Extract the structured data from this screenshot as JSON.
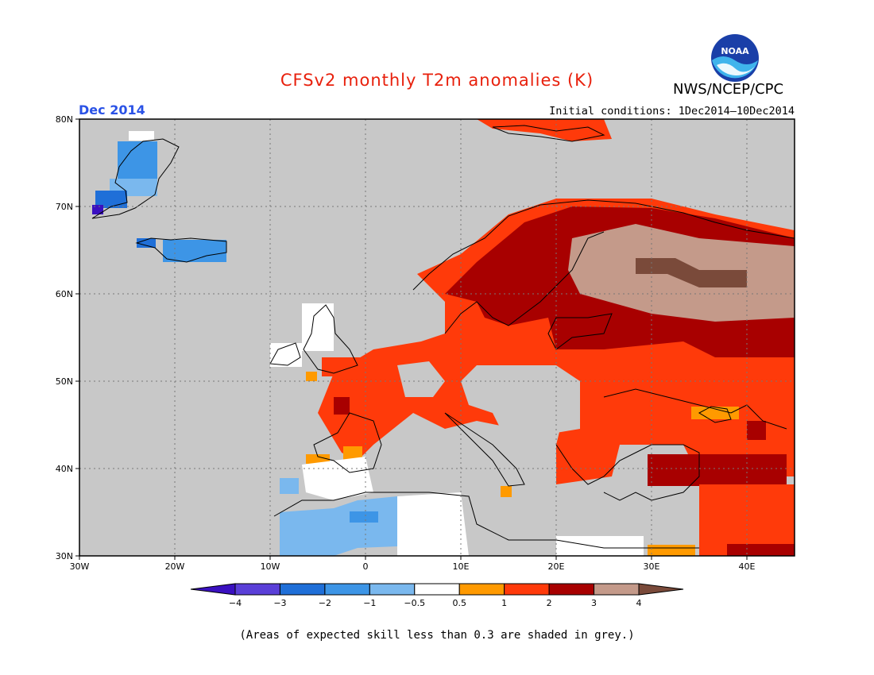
{
  "title": "CFSv2 monthly T2m anomalies (K)",
  "month_label": "Dec 2014",
  "init_label": "Initial conditions: 1Dec2014—10Dec2014",
  "agency": "NWS/NCEP/CPC",
  "logo_text": "NOAA",
  "footnote": "(Areas of expected skill less than 0.3 are shaded in grey.)",
  "map": {
    "lon_range": [
      -30,
      45
    ],
    "lat_range": [
      30,
      80
    ],
    "lat_labels": [
      "80N",
      "70N",
      "60N",
      "50N",
      "40N",
      "30N"
    ],
    "lon_labels": [
      "30W",
      "20W",
      "10W",
      "0",
      "10E",
      "20E",
      "30E",
      "40E"
    ],
    "grid": true,
    "background_color": "#c8c8c8"
  },
  "colorbar": {
    "ticks": [
      "−4",
      "−3",
      "−2",
      "−1",
      "−0.5",
      "0.5",
      "1",
      "2",
      "3",
      "4"
    ],
    "colors": [
      "#3a10c0",
      "#5a3fd8",
      "#1f6fd8",
      "#3d95e6",
      "#7ab8ee",
      "#ffffff",
      "#ff9a00",
      "#ff3a0a",
      "#a80000",
      "#c49a8a",
      "#7a4a3a"
    ]
  }
}
